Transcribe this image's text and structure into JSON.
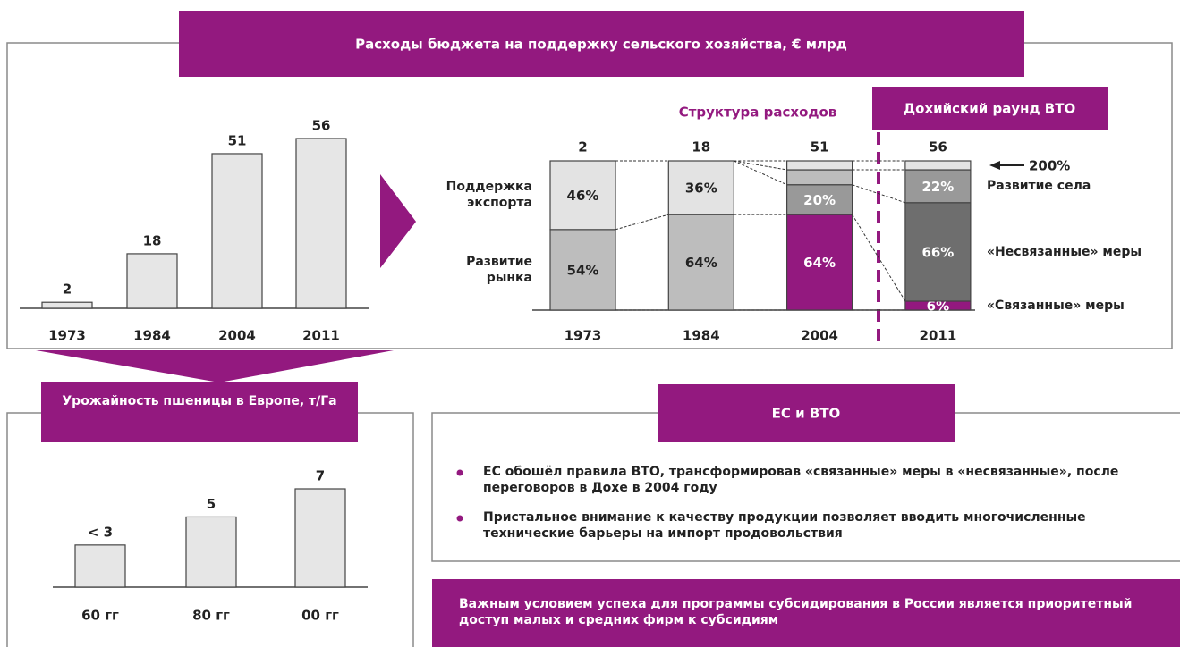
{
  "chart_data": [
    {
      "type": "bar",
      "title": "Расходы бюджета на поддержку сельского хозяйства, € млрд",
      "categories": [
        "1973",
        "1984",
        "2004",
        "2011"
      ],
      "values": [
        2,
        18,
        51,
        56
      ],
      "color": "#e6e6e6"
    },
    {
      "type": "stacked_percent",
      "title": "Структура расходов",
      "annotation": "Дохийский раунд ВТО",
      "arrow_label": "200%",
      "categories": [
        "1973",
        "1984",
        "2004",
        "2011"
      ],
      "totals": [
        2,
        18,
        51,
        56
      ],
      "series": [
        {
          "name": "«Связанные» меры",
          "color": "#93197f",
          "values": [
            null,
            null,
            64,
            6
          ],
          "value_labels": [
            null,
            null,
            "64%",
            "6%"
          ]
        },
        {
          "name": "«Несвязанные» меры",
          "color": "#6e6e6e",
          "values": [
            null,
            null,
            null,
            66
          ],
          "value_labels": [
            null,
            null,
            null,
            "66%"
          ]
        },
        {
          "name": "Развитие села",
          "color": "#999999",
          "values": [
            null,
            null,
            20,
            22
          ],
          "value_labels": [
            null,
            null,
            "20%",
            "22%"
          ]
        },
        {
          "name": "Развитие рынка",
          "color": "#bdbdbd",
          "values": [
            54,
            64,
            10,
            null
          ],
          "value_labels": [
            "54%",
            "64%",
            null,
            null
          ]
        },
        {
          "name": "Поддержка экспорта",
          "color": "#e3e3e3",
          "values": [
            46,
            36,
            6,
            6
          ],
          "value_labels": [
            "46%",
            "36%",
            null,
            null
          ]
        }
      ]
    },
    {
      "type": "bar",
      "title": "Урожайность пшеницы в Европе, т/Га",
      "categories": [
        "60 гг",
        "80 гг",
        "00 гг"
      ],
      "values": [
        3,
        5,
        7
      ],
      "value_labels": [
        "< 3",
        "5",
        "7"
      ],
      "color": "#e6e6e6"
    }
  ],
  "eu_wto": {
    "title": "ЕС и ВТО",
    "bullets": [
      "ЕС обошёл правила ВТО, трансформировав «связанные» меры в «несвязанные», после переговоров в Дохе в 2004 году",
      "Пристальное внимание к качеству продукции позволяет вводить многочисленные технические барьеры на импорт продовольствия"
    ]
  },
  "conclusion": "Важным условием успеха для программы субсидирования в России является приоритетный доступ малых и средних фирм к субсидиям"
}
